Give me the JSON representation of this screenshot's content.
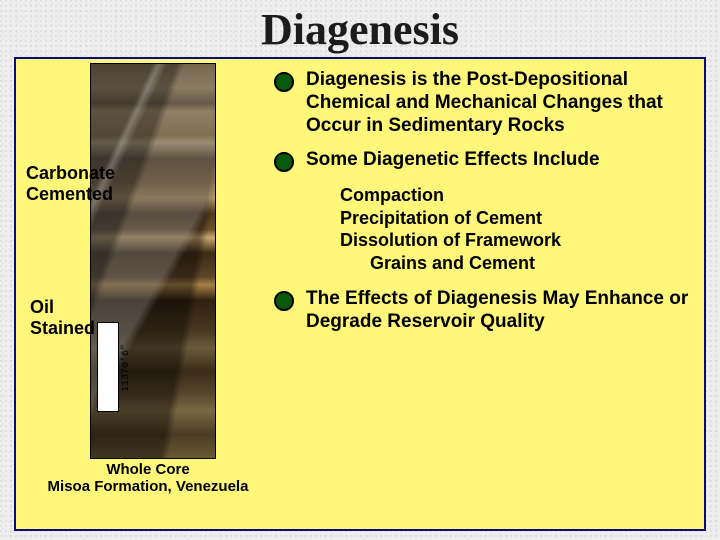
{
  "title": "Diagenesis",
  "title_fontsize": 44,
  "title_color": "#1c1c1c",
  "box_border_color": "#0b0e7a",
  "box_bg_color": "#fff77a",
  "leftLabels": {
    "upper": {
      "line1": "Carbonate",
      "line2": "Cemented"
    },
    "lower": {
      "line1": "Oil",
      "line2": "Stained"
    }
  },
  "label_fontsize": 18,
  "caption": {
    "line1": "Whole Core",
    "line2": "Misoa Formation, Venezuela"
  },
  "caption_fontsize": 15,
  "core_tag_text": "11368'9\"–11370'6\"",
  "bullets": {
    "b1": "Diagenesis is the Post-Depositional Chemical and Mechanical Changes that Occur in Sedimentary Rocks",
    "b2": "Some Diagenetic Effects Include",
    "b3": "The Effects of Diagenesis May Enhance or Degrade Reservoir Quality"
  },
  "bullet_fontsize": 19,
  "sublist": {
    "s1": "Compaction",
    "s2": "Precipitation of Cement",
    "s3": "Dissolution of Framework",
    "s4": "Grains and Cement"
  },
  "sublist_fontsize": 18,
  "bullet_marker": {
    "outer_color": "#000000",
    "inner_color": "#085a08",
    "size": 20
  }
}
